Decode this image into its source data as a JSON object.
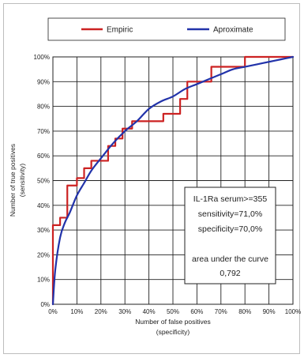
{
  "chart_data": {
    "type": "line",
    "title": "",
    "xlabel": [
      "Number of false positives",
      "(specificity)"
    ],
    "ylabel": [
      "Number of true positives",
      "(sensitivity)"
    ],
    "xlim": [
      0,
      100
    ],
    "ylim": [
      0,
      100
    ],
    "x_ticks": [
      "0%",
      "10%",
      "20%",
      "30%",
      "40%",
      "50%",
      "60%",
      "70%",
      "80%",
      "90%",
      "100%"
    ],
    "y_ticks": [
      "0%",
      "10%",
      "20%",
      "30%",
      "40%",
      "50%",
      "60%",
      "70%",
      "80%",
      "90%",
      "100%"
    ],
    "grid": true,
    "legend": {
      "position": "top",
      "entries": [
        "Empiric",
        "Aproximate"
      ]
    },
    "series": [
      {
        "name": "Empiric",
        "color": "#cc2222",
        "style": "step",
        "points": [
          [
            0,
            0
          ],
          [
            0,
            32
          ],
          [
            3,
            32
          ],
          [
            3,
            35
          ],
          [
            6,
            35
          ],
          [
            6,
            48
          ],
          [
            10,
            48
          ],
          [
            10,
            51
          ],
          [
            13,
            51
          ],
          [
            13,
            55
          ],
          [
            16,
            55
          ],
          [
            16,
            58
          ],
          [
            23,
            58
          ],
          [
            23,
            64
          ],
          [
            26,
            64
          ],
          [
            26,
            67
          ],
          [
            29,
            67
          ],
          [
            29,
            71
          ],
          [
            33,
            71
          ],
          [
            33,
            74
          ],
          [
            46,
            74
          ],
          [
            46,
            77
          ],
          [
            53,
            77
          ],
          [
            53,
            83
          ],
          [
            56,
            83
          ],
          [
            56,
            90
          ],
          [
            66,
            90
          ],
          [
            66,
            96
          ],
          [
            80,
            96
          ],
          [
            80,
            100
          ],
          [
            100,
            100
          ]
        ]
      },
      {
        "name": "Aproximate",
        "color": "#2233aa",
        "style": "smooth",
        "points": [
          [
            0,
            0
          ],
          [
            1,
            14
          ],
          [
            3,
            27
          ],
          [
            5,
            33
          ],
          [
            7,
            37
          ],
          [
            10,
            44
          ],
          [
            13,
            49
          ],
          [
            16,
            54
          ],
          [
            20,
            59
          ],
          [
            25,
            65
          ],
          [
            30,
            70
          ],
          [
            35,
            74
          ],
          [
            40,
            79
          ],
          [
            45,
            82
          ],
          [
            50,
            84
          ],
          [
            55,
            87
          ],
          [
            60,
            89
          ],
          [
            65,
            91
          ],
          [
            70,
            93
          ],
          [
            75,
            95
          ],
          [
            80,
            96
          ],
          [
            85,
            97
          ],
          [
            90,
            98
          ],
          [
            95,
            99
          ],
          [
            100,
            100
          ]
        ]
      }
    ],
    "annotations": [
      "IL-1Ra serum>=355",
      "sensitivity=71,0%",
      "specificity=70,0%",
      "",
      "area under the curve",
      "0,792"
    ]
  }
}
